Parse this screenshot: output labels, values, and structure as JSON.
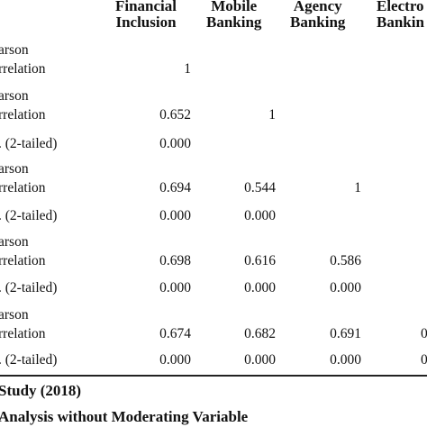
{
  "table": {
    "headers": [
      {
        "line1": "Financial",
        "line2": "Inclusion"
      },
      {
        "line1": "Mobile",
        "line2": "Banking"
      },
      {
        "line1": "Agency",
        "line2": "Banking"
      },
      {
        "line1": "Electro",
        "line2": "Bankin"
      }
    ],
    "labels": {
      "pearson_line1": "arson",
      "pearson_line2": "rrelation",
      "sig": ". (2-tailed)"
    },
    "rows": [
      {
        "corr": [
          "1",
          "",
          "",
          ""
        ],
        "sig": null
      },
      {
        "corr": [
          "0.652",
          "1",
          "",
          ""
        ],
        "sig": [
          "0.000",
          "",
          "",
          ""
        ]
      },
      {
        "corr": [
          "0.694",
          "0.544",
          "1",
          ""
        ],
        "sig": [
          "0.000",
          "0.000",
          "",
          ""
        ]
      },
      {
        "corr": [
          "0.698",
          "0.616",
          "0.586",
          ""
        ],
        "sig": [
          "0.000",
          "0.000",
          "0.000",
          ""
        ]
      },
      {
        "corr": [
          "0.674",
          "0.682",
          "0.691",
          "0"
        ],
        "sig": [
          "0.000",
          "0.000",
          "0.000",
          "0"
        ]
      }
    ]
  },
  "footer": {
    "source": "Study (2018)",
    "caption": "Analysis without Moderating Variable"
  }
}
